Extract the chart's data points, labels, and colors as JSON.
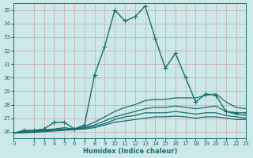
{
  "xlabel": "Humidex (Indice chaleur)",
  "background_color": "#cce8e8",
  "grid_color": "#aacccc",
  "line_color": "#1a6e6e",
  "xlim": [
    0,
    23
  ],
  "ylim": [
    25.5,
    35.5
  ],
  "yticks": [
    26,
    27,
    28,
    29,
    30,
    31,
    32,
    33,
    34,
    35
  ],
  "xticks": [
    0,
    2,
    3,
    4,
    5,
    6,
    7,
    8,
    9,
    10,
    11,
    12,
    13,
    14,
    15,
    16,
    17,
    18,
    19,
    20,
    21,
    22,
    23
  ],
  "lines": [
    {
      "x": [
        0,
        1,
        2,
        3,
        4,
        5,
        6,
        7,
        8,
        9,
        10,
        11,
        12,
        13,
        14,
        15,
        16,
        17,
        18,
        19,
        20,
        21,
        22,
        23
      ],
      "y": [
        25.9,
        26.1,
        26.1,
        26.2,
        26.7,
        26.7,
        26.2,
        26.5,
        30.2,
        32.3,
        35.0,
        34.2,
        34.5,
        35.3,
        32.9,
        30.7,
        31.8,
        30.0,
        28.2,
        28.8,
        28.7,
        27.5,
        27.4,
        27.4
      ],
      "marker": "+",
      "markersize": 4,
      "linewidth": 1.0
    },
    {
      "x": [
        0,
        1,
        2,
        3,
        4,
        5,
        6,
        7,
        8,
        9,
        10,
        11,
        12,
        13,
        14,
        15,
        16,
        17,
        18,
        19,
        20,
        21,
        22,
        23
      ],
      "y": [
        25.9,
        26.0,
        26.1,
        26.15,
        26.2,
        26.3,
        26.2,
        26.4,
        26.7,
        27.1,
        27.5,
        27.8,
        28.0,
        28.3,
        28.4,
        28.4,
        28.5,
        28.5,
        28.5,
        28.7,
        28.8,
        28.2,
        27.8,
        27.7
      ],
      "marker": null,
      "markersize": 0,
      "linewidth": 0.9
    },
    {
      "x": [
        0,
        1,
        2,
        3,
        4,
        5,
        6,
        7,
        8,
        9,
        10,
        11,
        12,
        13,
        14,
        15,
        16,
        17,
        18,
        19,
        20,
        21,
        22,
        23
      ],
      "y": [
        25.9,
        26.0,
        26.05,
        26.1,
        26.15,
        26.2,
        26.2,
        26.3,
        26.5,
        26.8,
        27.1,
        27.3,
        27.5,
        27.7,
        27.8,
        27.8,
        27.9,
        27.8,
        27.7,
        27.8,
        27.9,
        27.5,
        27.3,
        27.2
      ],
      "marker": null,
      "markersize": 0,
      "linewidth": 0.9
    },
    {
      "x": [
        0,
        1,
        2,
        3,
        4,
        5,
        6,
        7,
        8,
        9,
        10,
        11,
        12,
        13,
        14,
        15,
        16,
        17,
        18,
        19,
        20,
        21,
        22,
        23
      ],
      "y": [
        25.9,
        25.95,
        26.0,
        26.05,
        26.1,
        26.15,
        26.2,
        26.25,
        26.4,
        26.6,
        26.9,
        27.1,
        27.2,
        27.4,
        27.4,
        27.4,
        27.5,
        27.4,
        27.3,
        27.4,
        27.4,
        27.2,
        27.1,
        27.0
      ],
      "marker": null,
      "markersize": 0,
      "linewidth": 0.9
    },
    {
      "x": [
        0,
        1,
        2,
        3,
        4,
        5,
        6,
        7,
        8,
        9,
        10,
        11,
        12,
        13,
        14,
        15,
        16,
        17,
        18,
        19,
        20,
        21,
        22,
        23
      ],
      "y": [
        25.9,
        25.92,
        25.95,
        26.0,
        26.05,
        26.1,
        26.15,
        26.2,
        26.3,
        26.5,
        26.7,
        26.8,
        26.9,
        27.0,
        27.1,
        27.1,
        27.15,
        27.1,
        27.0,
        27.1,
        27.1,
        27.0,
        26.9,
        26.9
      ],
      "marker": null,
      "markersize": 0,
      "linewidth": 0.9
    }
  ]
}
